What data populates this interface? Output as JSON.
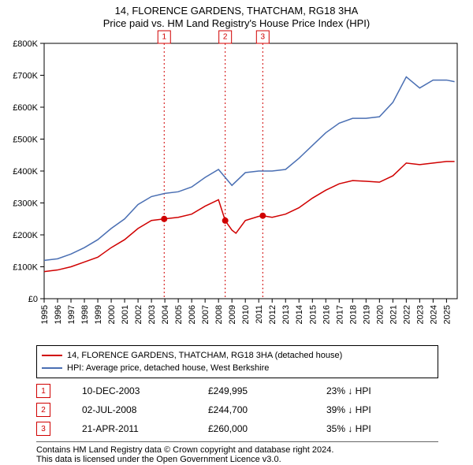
{
  "title_line1": "14, FLORENCE GARDENS, THATCHAM, RG18 3HA",
  "title_line2": "Price paid vs. HM Land Registry's House Price Index (HPI)",
  "chart": {
    "type": "line",
    "background_color": "#ffffff",
    "plot_border_color": "#000000",
    "grid_color": "#ffffff",
    "x": {
      "min": 1995,
      "max": 2025.8,
      "ticks": [
        1995,
        1996,
        1997,
        1998,
        1999,
        2000,
        2001,
        2002,
        2003,
        2004,
        2005,
        2006,
        2007,
        2008,
        2009,
        2010,
        2011,
        2012,
        2013,
        2014,
        2015,
        2016,
        2017,
        2018,
        2019,
        2020,
        2021,
        2022,
        2023,
        2024,
        2025
      ]
    },
    "y": {
      "min": 0,
      "max": 800000,
      "ticks": [
        0,
        100000,
        200000,
        300000,
        400000,
        500000,
        600000,
        700000,
        800000
      ],
      "tick_labels": [
        "£0",
        "£100K",
        "£200K",
        "£300K",
        "£400K",
        "£500K",
        "£600K",
        "£700K",
        "£800K"
      ]
    },
    "series": [
      {
        "name": "house",
        "color": "#d00000",
        "line_width": 1.5,
        "x": [
          1995,
          1996,
          1997,
          1998,
          1999,
          2000,
          2001,
          2002,
          2003,
          2003.95,
          2005,
          2006,
          2007,
          2008,
          2008.5,
          2009,
          2009.3,
          2010,
          2011,
          2011.3,
          2012,
          2013,
          2014,
          2015,
          2016,
          2017,
          2018,
          2019,
          2020,
          2021,
          2022,
          2023,
          2024,
          2025,
          2025.6
        ],
        "y": [
          85000,
          90000,
          100000,
          115000,
          130000,
          160000,
          185000,
          220000,
          245000,
          249995,
          255000,
          265000,
          290000,
          310000,
          244700,
          215000,
          205000,
          245000,
          258000,
          260000,
          255000,
          265000,
          285000,
          315000,
          340000,
          360000,
          370000,
          368000,
          365000,
          385000,
          425000,
          420000,
          425000,
          430000,
          430000
        ]
      },
      {
        "name": "hpi",
        "color": "#4a6fb3",
        "line_width": 1.5,
        "x": [
          1995,
          1996,
          1997,
          1998,
          1999,
          2000,
          2001,
          2002,
          2003,
          2004,
          2005,
          2006,
          2007,
          2008,
          2009,
          2010,
          2011,
          2012,
          2013,
          2014,
          2015,
          2016,
          2017,
          2018,
          2019,
          2020,
          2021,
          2022,
          2023,
          2024,
          2025,
          2025.6
        ],
        "y": [
          120000,
          125000,
          140000,
          160000,
          185000,
          220000,
          250000,
          295000,
          320000,
          330000,
          335000,
          350000,
          380000,
          405000,
          355000,
          395000,
          400000,
          400000,
          405000,
          440000,
          480000,
          520000,
          550000,
          565000,
          565000,
          570000,
          615000,
          695000,
          660000,
          685000,
          685000,
          680000
        ]
      }
    ],
    "event_markers": [
      {
        "idx": "1",
        "x": 2003.95,
        "y": 249995,
        "line_color": "#d00000",
        "line_dash": "2,3"
      },
      {
        "idx": "2",
        "x": 2008.5,
        "y": 244700,
        "line_color": "#d00000",
        "line_dash": "2,3"
      },
      {
        "idx": "3",
        "x": 2011.3,
        "y": 260000,
        "line_color": "#d00000",
        "line_dash": "2,3"
      }
    ],
    "event_point": {
      "fill": "#d00000",
      "radius": 4
    }
  },
  "legend": {
    "house": {
      "label": "14, FLORENCE GARDENS, THATCHAM, RG18 3HA (detached house)",
      "color": "#d00000"
    },
    "hpi": {
      "label": "HPI: Average price, detached house, West Berkshire",
      "color": "#4a6fb3"
    }
  },
  "events": [
    {
      "idx": "1",
      "date": "10-DEC-2003",
      "price": "£249,995",
      "delta": "23% ↓ HPI"
    },
    {
      "idx": "2",
      "date": "02-JUL-2008",
      "price": "£244,700",
      "delta": "39% ↓ HPI"
    },
    {
      "idx": "3",
      "date": "21-APR-2011",
      "price": "£260,000",
      "delta": "35% ↓ HPI"
    }
  ],
  "credit_line1": "Contains HM Land Registry data © Crown copyright and database right 2024.",
  "credit_line2": "This data is licensed under the Open Government Licence v3.0."
}
